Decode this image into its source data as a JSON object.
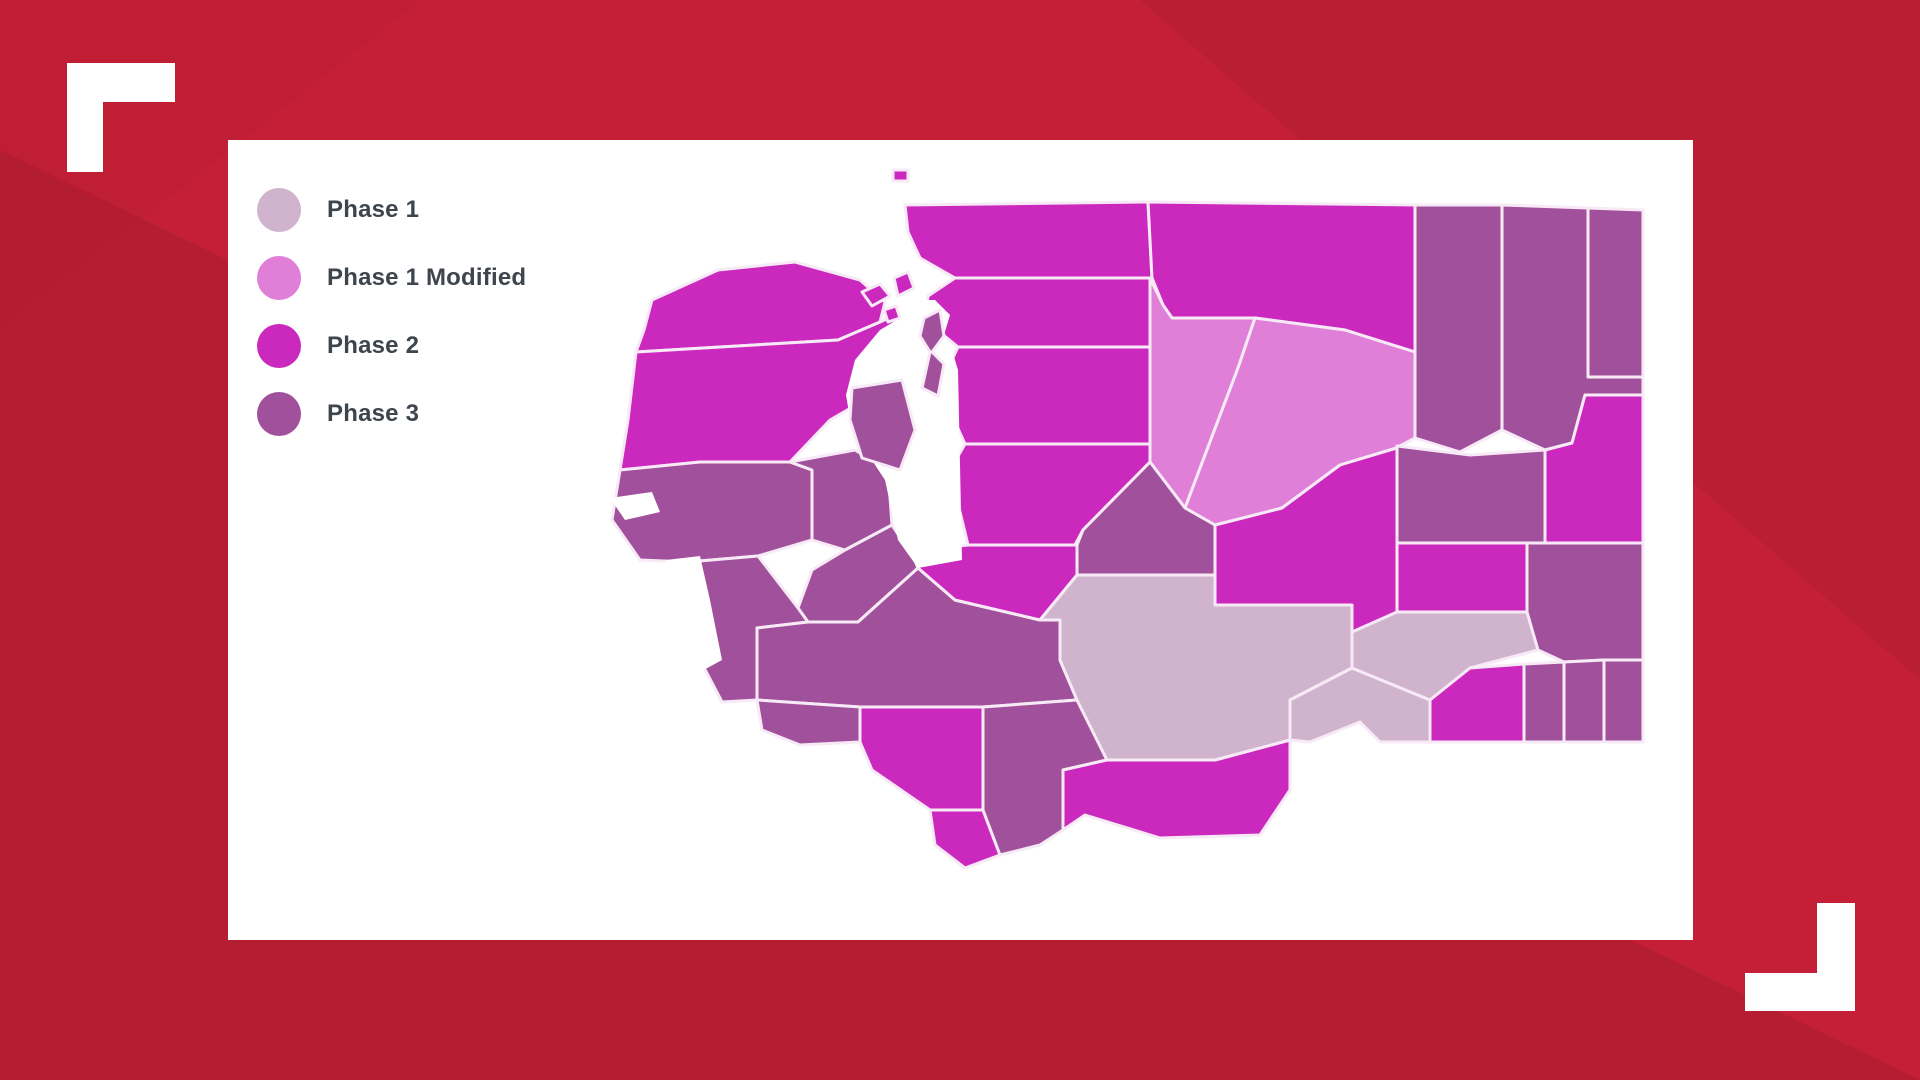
{
  "background": {
    "base_color": "#C51F37",
    "shard_colors": [
      "#A81C2F",
      "#B01D31",
      "#B51E32"
    ],
    "bracket_color": "#FFFFFF"
  },
  "panel": {
    "background_color": "#FFFFFF"
  },
  "legend": {
    "text_color": "#3F454D",
    "items": [
      {
        "phase": "phase1",
        "label": "Phase 1"
      },
      {
        "phase": "phase1_modified",
        "label": "Phase 1 Modified"
      },
      {
        "phase": "phase2",
        "label": "Phase 2"
      },
      {
        "phase": "phase3",
        "label": "Phase 3"
      }
    ]
  },
  "phases": {
    "phase1": {
      "label": "Phase 1",
      "color": "#D0B3CD"
    },
    "phase1_modified": {
      "label": "Phase 1 Modified",
      "color": "#E07FD8"
    },
    "phase2": {
      "label": "Phase 2",
      "color": "#CB29BE"
    },
    "phase3": {
      "label": "Phase 3",
      "color": "#A1519B"
    }
  },
  "map": {
    "region": "Washington state counties by reopening phase",
    "border_color": "#F7EAF6",
    "water_color": "#FFFFFF",
    "counties": [
      {
        "name": "Clallam",
        "phase": "phase2"
      },
      {
        "name": "Jefferson",
        "phase": "phase2"
      },
      {
        "name": "Grays Harbor",
        "phase": "phase3"
      },
      {
        "name": "Mason",
        "phase": "phase3"
      },
      {
        "name": "Thurston",
        "phase": "phase3"
      },
      {
        "name": "Pacific",
        "phase": "phase3"
      },
      {
        "name": "Lewis",
        "phase": "phase3"
      },
      {
        "name": "Wahkiakum",
        "phase": "phase3"
      },
      {
        "name": "Cowlitz",
        "phase": "phase2"
      },
      {
        "name": "Clark",
        "phase": "phase2"
      },
      {
        "name": "Skamania",
        "phase": "phase3"
      },
      {
        "name": "Klickitat",
        "phase": "phase2"
      },
      {
        "name": "Whatcom",
        "phase": "phase2"
      },
      {
        "name": "Skagit",
        "phase": "phase2"
      },
      {
        "name": "Snohomish",
        "phase": "phase2"
      },
      {
        "name": "King",
        "phase": "phase2"
      },
      {
        "name": "Pierce",
        "phase": "phase2"
      },
      {
        "name": "Okanogan",
        "phase": "phase2"
      },
      {
        "name": "Chelan",
        "phase": "phase1_modified"
      },
      {
        "name": "Douglas",
        "phase": "phase1_modified"
      },
      {
        "name": "Kittitas",
        "phase": "phase3"
      },
      {
        "name": "Yakima",
        "phase": "phase1"
      },
      {
        "name": "Grant",
        "phase": "phase2"
      },
      {
        "name": "Benton",
        "phase": "phase1"
      },
      {
        "name": "Franklin",
        "phase": "phase1"
      },
      {
        "name": "Adams",
        "phase": "phase2"
      },
      {
        "name": "Lincoln",
        "phase": "phase3"
      },
      {
        "name": "Ferry",
        "phase": "phase3"
      },
      {
        "name": "Stevens",
        "phase": "phase3"
      },
      {
        "name": "Pend Oreille",
        "phase": "phase3"
      },
      {
        "name": "Spokane",
        "phase": "phase2"
      },
      {
        "name": "Whitman",
        "phase": "phase3"
      },
      {
        "name": "Walla Walla",
        "phase": "phase2"
      },
      {
        "name": "Columbia",
        "phase": "phase3"
      },
      {
        "name": "Garfield",
        "phase": "phase3"
      },
      {
        "name": "Asotin",
        "phase": "phase3"
      },
      {
        "name": "Kitsap",
        "phase": "phase3"
      },
      {
        "name": "Island",
        "phase": "phase3"
      },
      {
        "name": "San Juan",
        "phase": "phase2"
      }
    ]
  }
}
